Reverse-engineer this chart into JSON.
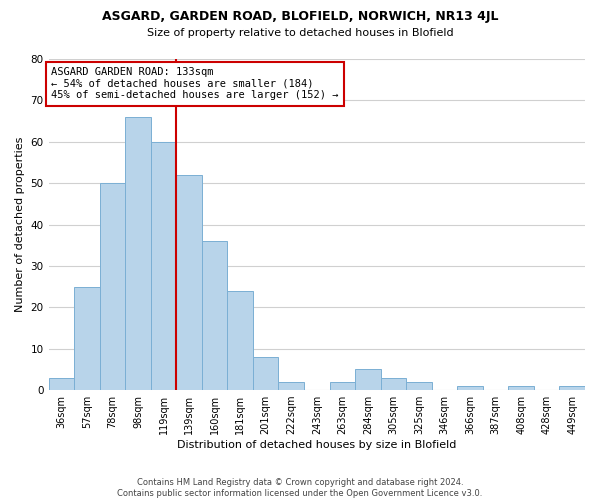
{
  "title": "ASGARD, GARDEN ROAD, BLOFIELD, NORWICH, NR13 4JL",
  "subtitle": "Size of property relative to detached houses in Blofield",
  "xlabel": "Distribution of detached houses by size in Blofield",
  "ylabel": "Number of detached properties",
  "footer_lines": [
    "Contains HM Land Registry data © Crown copyright and database right 2024.",
    "Contains public sector information licensed under the Open Government Licence v3.0."
  ],
  "bin_labels": [
    "36sqm",
    "57sqm",
    "78sqm",
    "98sqm",
    "119sqm",
    "139sqm",
    "160sqm",
    "181sqm",
    "201sqm",
    "222sqm",
    "243sqm",
    "263sqm",
    "284sqm",
    "305sqm",
    "325sqm",
    "346sqm",
    "366sqm",
    "387sqm",
    "408sqm",
    "428sqm",
    "449sqm"
  ],
  "bar_values": [
    3,
    25,
    50,
    66,
    60,
    52,
    36,
    24,
    8,
    2,
    0,
    2,
    5,
    3,
    2,
    0,
    1,
    0,
    1,
    0,
    1
  ],
  "bar_color": "#b8d4ea",
  "bar_edge_color": "#7bafd4",
  "vline_color": "#cc0000",
  "annotation_text": "ASGARD GARDEN ROAD: 133sqm\n← 54% of detached houses are smaller (184)\n45% of semi-detached houses are larger (152) →",
  "annotation_box_color": "white",
  "annotation_box_edge": "#cc0000",
  "ylim": [
    0,
    80
  ],
  "yticks": [
    0,
    10,
    20,
    30,
    40,
    50,
    60,
    70,
    80
  ],
  "grid_color": "#d0d0d0",
  "background_color": "#ffffff"
}
